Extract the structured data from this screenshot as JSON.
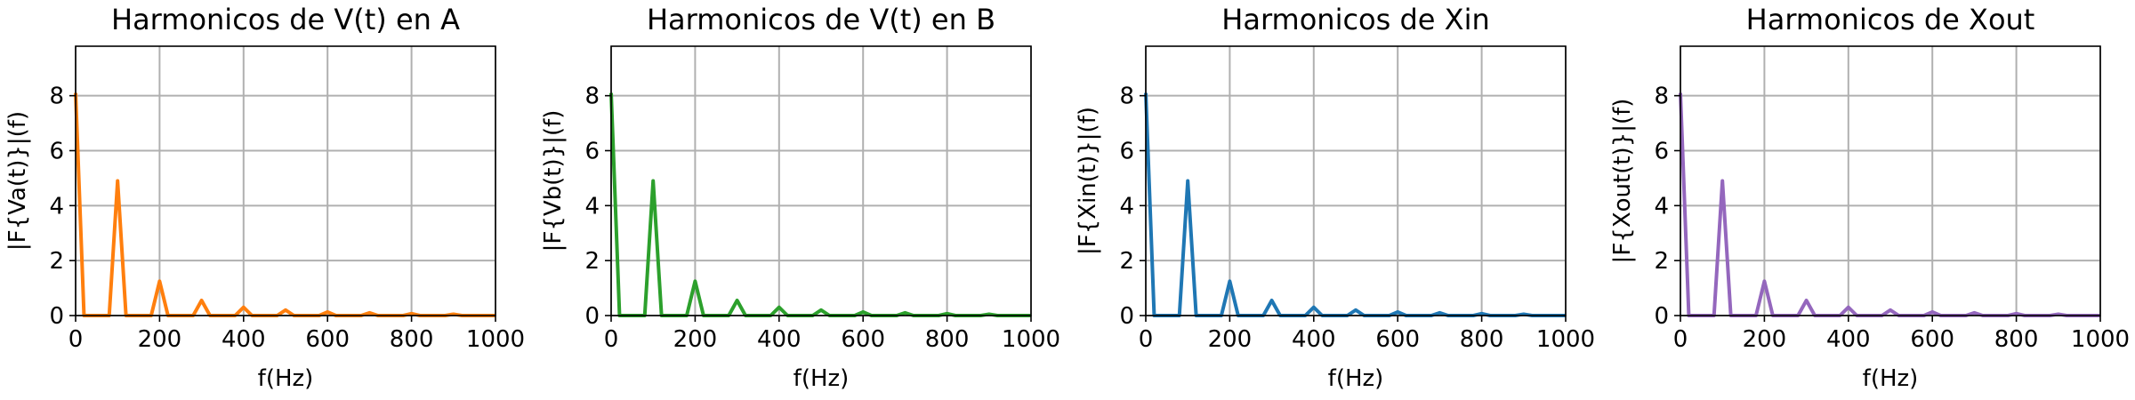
{
  "chart_data": [
    {
      "type": "line",
      "title": "Harmonicos de V(t) en A",
      "xlabel": "f(Hz)",
      "ylabel": "|F{Va(t)}|(f)",
      "xlim": [
        0,
        1000
      ],
      "ylim": [
        0,
        9.8
      ],
      "xticks": [
        0,
        200,
        400,
        600,
        800,
        1000
      ],
      "yticks": [
        0,
        2,
        4,
        6,
        8
      ],
      "grid": true,
      "color": "#ff7f0e",
      "x": [
        0,
        20,
        80,
        100,
        120,
        180,
        200,
        220,
        280,
        300,
        320,
        380,
        400,
        420,
        480,
        500,
        520,
        580,
        600,
        620,
        680,
        700,
        720,
        780,
        800,
        820,
        880,
        900,
        920,
        1000
      ],
      "y": [
        8.1,
        0,
        0,
        4.9,
        0,
        0,
        1.25,
        0,
        0,
        0.55,
        0,
        0,
        0.3,
        0,
        0,
        0.2,
        0,
        0,
        0.13,
        0,
        0,
        0.1,
        0,
        0,
        0.07,
        0,
        0,
        0.05,
        0,
        0
      ]
    },
    {
      "type": "line",
      "title": "Harmonicos de V(t) en B",
      "xlabel": "f(Hz)",
      "ylabel": "|F{Vb(t)}|(f)",
      "xlim": [
        0,
        1000
      ],
      "ylim": [
        0,
        9.8
      ],
      "xticks": [
        0,
        200,
        400,
        600,
        800,
        1000
      ],
      "yticks": [
        0,
        2,
        4,
        6,
        8
      ],
      "grid": true,
      "color": "#2ca02c",
      "x": [
        0,
        20,
        80,
        100,
        120,
        180,
        200,
        220,
        280,
        300,
        320,
        380,
        400,
        420,
        480,
        500,
        520,
        580,
        600,
        620,
        680,
        700,
        720,
        780,
        800,
        820,
        880,
        900,
        920,
        1000
      ],
      "y": [
        8.1,
        0,
        0,
        4.9,
        0,
        0,
        1.25,
        0,
        0,
        0.55,
        0,
        0,
        0.3,
        0,
        0,
        0.2,
        0,
        0,
        0.13,
        0,
        0,
        0.1,
        0,
        0,
        0.07,
        0,
        0,
        0.05,
        0,
        0
      ]
    },
    {
      "type": "line",
      "title": "Harmonicos de Xin",
      "xlabel": "f(Hz)",
      "ylabel": "|F{Xin(t)}|(f)",
      "xlim": [
        0,
        1000
      ],
      "ylim": [
        0,
        9.8
      ],
      "xticks": [
        0,
        200,
        400,
        600,
        800,
        1000
      ],
      "yticks": [
        0,
        2,
        4,
        6,
        8
      ],
      "grid": true,
      "color": "#1f77b4",
      "x": [
        0,
        20,
        80,
        100,
        120,
        180,
        200,
        220,
        280,
        300,
        320,
        380,
        400,
        420,
        480,
        500,
        520,
        580,
        600,
        620,
        680,
        700,
        720,
        780,
        800,
        820,
        880,
        900,
        920,
        1000
      ],
      "y": [
        8.1,
        0,
        0,
        4.9,
        0,
        0,
        1.25,
        0,
        0,
        0.55,
        0,
        0,
        0.3,
        0,
        0,
        0.2,
        0,
        0,
        0.13,
        0,
        0,
        0.1,
        0,
        0,
        0.07,
        0,
        0,
        0.05,
        0,
        0
      ]
    },
    {
      "type": "line",
      "title": "Harmonicos de Xout",
      "xlabel": "f(Hz)",
      "ylabel": "|F{Xout(t)}|(f)",
      "xlim": [
        0,
        1000
      ],
      "ylim": [
        0,
        9.8
      ],
      "xticks": [
        0,
        200,
        400,
        600,
        800,
        1000
      ],
      "yticks": [
        0,
        2,
        4,
        6,
        8
      ],
      "grid": true,
      "color": "#9467bd",
      "x": [
        0,
        20,
        80,
        100,
        120,
        180,
        200,
        220,
        280,
        300,
        320,
        380,
        400,
        420,
        480,
        500,
        520,
        580,
        600,
        620,
        680,
        700,
        720,
        780,
        800,
        820,
        880,
        900,
        920,
        1000
      ],
      "y": [
        8.1,
        0,
        0,
        4.9,
        0,
        0,
        1.25,
        0,
        0,
        0.55,
        0,
        0,
        0.3,
        0,
        0,
        0.2,
        0,
        0,
        0.13,
        0,
        0,
        0.1,
        0,
        0,
        0.07,
        0,
        0,
        0.05,
        0,
        0
      ]
    }
  ]
}
